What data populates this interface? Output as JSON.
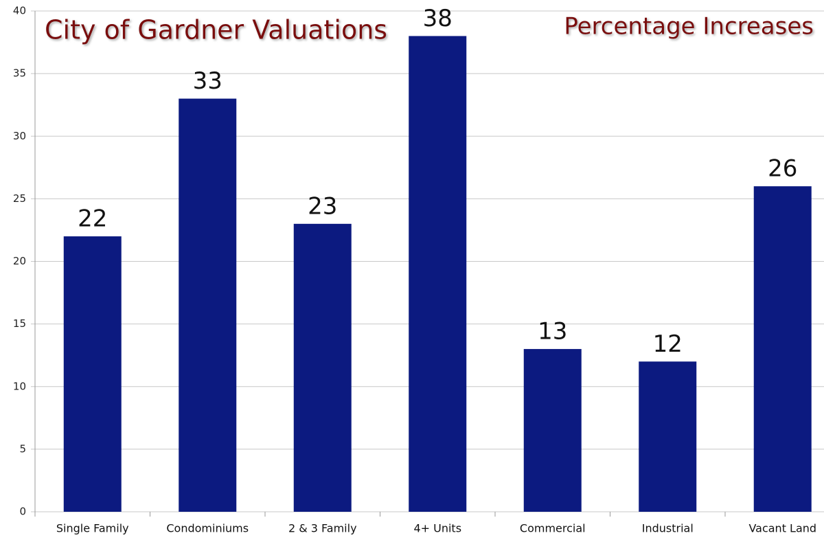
{
  "chart_data": {
    "type": "bar",
    "title": "City of Gardner Valuations",
    "subtitle": "Percentage Increases",
    "categories": [
      "Single Family",
      "Condominiums",
      "2 & 3 Family",
      "4+ Units",
      "Commercial",
      "Industrial",
      "Vacant Land"
    ],
    "values": [
      22,
      33,
      23,
      38,
      13,
      12,
      26
    ],
    "color": "#0c1a80",
    "ylim": [
      0,
      40
    ],
    "yticks": [
      0,
      5,
      10,
      15,
      20,
      25,
      30,
      35,
      40
    ],
    "grid": true
  }
}
